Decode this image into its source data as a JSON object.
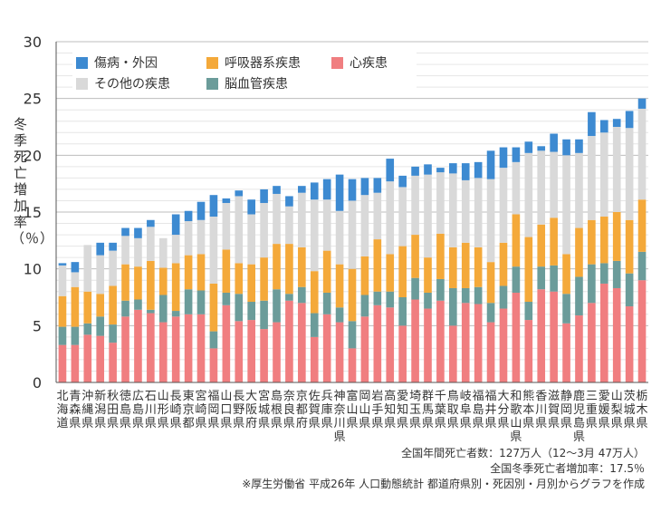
{
  "chart_data": {
    "type": "bar",
    "stacked": true,
    "ylabel": "冬季死亡増加率（％）",
    "ylim": [
      0,
      30
    ],
    "yticks": [
      0,
      5,
      10,
      15,
      20,
      25,
      30
    ],
    "grid": true,
    "legend_position": "top-left",
    "categories": [
      "北海道",
      "青森県",
      "沖縄県",
      "新潟県",
      "秋田県",
      "徳島県",
      "広島県",
      "石川県",
      "山形県",
      "長崎県",
      "東京都",
      "宮崎県",
      "福岡県",
      "山口県",
      "長野県",
      "大阪府",
      "宮城県",
      "島根県",
      "奈良県",
      "京都府",
      "佐賀県",
      "兵庫県",
      "神奈川県",
      "富山県",
      "岡山県",
      "岩手県",
      "高知県",
      "愛知県",
      "埼玉県",
      "群馬県",
      "千葉県",
      "鳥取県",
      "岐阜県",
      "福島県",
      "福井県",
      "大分県",
      "和歌山県",
      "熊本県",
      "香川県",
      "滋賀県",
      "静岡県",
      "鹿児島県",
      "三重県",
      "愛媛県",
      "山梨県",
      "茨城県",
      "栃木県"
    ],
    "series": [
      {
        "name": "心疾患",
        "color": "#f07e80",
        "values": [
          3.3,
          3.3,
          4.2,
          4.1,
          3.5,
          5.8,
          6.4,
          6.1,
          5.3,
          5.8,
          6.0,
          6.0,
          3.0,
          6.8,
          5.4,
          5.5,
          4.7,
          5.3,
          7.2,
          7.0,
          4.0,
          6.0,
          5.3,
          3.0,
          5.8,
          6.8,
          6.6,
          5.0,
          7.3,
          6.5,
          7.2,
          5.0,
          7.0,
          6.9,
          5.3,
          6.5,
          7.9,
          5.5,
          8.2,
          8.0,
          5.2,
          5.9,
          7.0,
          8.7,
          8.3,
          6.7,
          9.0
        ]
      },
      {
        "name": "脳血管疾患",
        "color": "#6b9c9a",
        "values": [
          1.6,
          1.6,
          1.0,
          1.7,
          1.6,
          1.4,
          0.9,
          0.3,
          2.4,
          0.5,
          2.2,
          2.1,
          1.5,
          1.1,
          2.4,
          1.6,
          2.5,
          2.9,
          0.6,
          1.4,
          2.1,
          1.9,
          1.3,
          2.4,
          1.9,
          1.2,
          1.4,
          2.5,
          1.9,
          1.4,
          1.9,
          3.3,
          1.3,
          1.5,
          1.7,
          2.0,
          2.3,
          1.6,
          2.0,
          2.3,
          2.6,
          3.4,
          3.4,
          1.8,
          2.4,
          2.9,
          2.5
        ]
      },
      {
        "name": "呼吸器系疾患",
        "color": "#f4a93a",
        "values": [
          2.7,
          3.5,
          2.8,
          2.0,
          3.4,
          3.2,
          2.9,
          4.3,
          2.4,
          4.2,
          3.0,
          3.2,
          4.2,
          3.8,
          2.7,
          3.3,
          3.8,
          4.0,
          4.4,
          3.5,
          3.7,
          3.7,
          3.8,
          4.6,
          3.4,
          4.6,
          3.3,
          4.5,
          3.8,
          3.1,
          4.0,
          3.6,
          4.0,
          3.5,
          3.6,
          3.8,
          4.6,
          5.7,
          3.7,
          4.2,
          3.5,
          4.3,
          3.9,
          4.1,
          4.3,
          4.7,
          4.6
        ]
      },
      {
        "name": "その他の疾患",
        "color": "#d9d9d9",
        "values": [
          2.7,
          1.3,
          4.1,
          3.4,
          3.1,
          2.5,
          2.5,
          3.0,
          2.6,
          2.5,
          3.0,
          3.0,
          5.9,
          4.1,
          5.9,
          4.4,
          4.8,
          4.4,
          3.3,
          4.8,
          6.3,
          4.5,
          4.7,
          6.0,
          5.4,
          4.1,
          6.4,
          5.2,
          5.2,
          7.3,
          5.4,
          6.5,
          5.5,
          6.1,
          7.3,
          6.6,
          4.6,
          7.4,
          6.5,
          5.8,
          8.7,
          6.6,
          7.4,
          7.4,
          7.5,
          8.1,
          8.0
        ]
      },
      {
        "name": "傷病・外因",
        "color": "#3d8ad1",
        "values": [
          0.2,
          0.9,
          0.0,
          1.1,
          0.7,
          0.7,
          0.9,
          0.6,
          0.0,
          1.8,
          0.9,
          1.6,
          1.9,
          0.4,
          0.5,
          1.3,
          1.2,
          0.7,
          0.9,
          0.6,
          1.5,
          1.8,
          3.2,
          1.9,
          1.5,
          1.3,
          2.0,
          1.0,
          0.8,
          0.9,
          0.4,
          0.9,
          1.5,
          1.4,
          2.5,
          1.8,
          1.3,
          1.0,
          0.4,
          1.6,
          1.4,
          1.2,
          2.1,
          1.1,
          0.7,
          1.5,
          0.9
        ]
      }
    ]
  },
  "legend": {
    "items": [
      {
        "label": "傷病・外因",
        "color": "#3d8ad1"
      },
      {
        "label": "呼吸器系疾患",
        "color": "#f4a93a"
      },
      {
        "label": "心疾患",
        "color": "#f07e80"
      },
      {
        "label": "その他の疾患",
        "color": "#d9d9d9"
      },
      {
        "label": "脳血管疾患",
        "color": "#6b9c9a"
      }
    ]
  },
  "notes": {
    "line1": "全国年間死亡者数：127万人（12～3月  47万人）",
    "line2": "全国冬季死亡者増加率：17.5％",
    "line3": "※厚生労働省  平成26年  人口動態統計  都道府県別・死因別・月別からグラフを作成"
  }
}
